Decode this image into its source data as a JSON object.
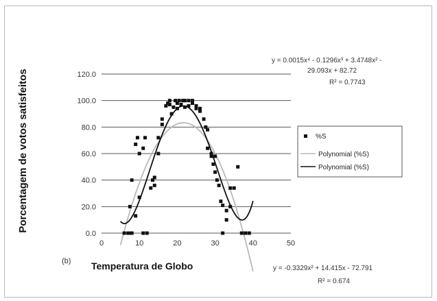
{
  "chart_data": {
    "type": "scatter",
    "ylabel": "Porcentagem de votos satisfeitos",
    "xlabel": "Temperatura de Globo",
    "panel_label": "(b)",
    "xlim": [
      0,
      50
    ],
    "ylim": [
      0,
      120
    ],
    "x_ticks": [
      0,
      10,
      20,
      30,
      40,
      50
    ],
    "x_tick_labels": [
      "0",
      "10",
      "20",
      "30",
      "40",
      "50"
    ],
    "y_ticks": [
      0,
      20,
      40,
      60,
      80,
      100,
      120
    ],
    "y_tick_labels": [
      "0.0",
      "20.0",
      "40.0",
      "60.0",
      "80.0",
      "100.0",
      "120.0"
    ],
    "grid": "horizontal",
    "legend_position": "right",
    "points": {
      "name": "%S",
      "color": "#111111",
      "data": [
        [
          6,
          0
        ],
        [
          7,
          0
        ],
        [
          7.5,
          0
        ],
        [
          8,
          0
        ],
        [
          7.5,
          20
        ],
        [
          8,
          40
        ],
        [
          9,
          67
        ],
        [
          9,
          13
        ],
        [
          9.5,
          72
        ],
        [
          10,
          27
        ],
        [
          10,
          60
        ],
        [
          11,
          64
        ],
        [
          11,
          0
        ],
        [
          11.5,
          72
        ],
        [
          12,
          0
        ],
        [
          13,
          34
        ],
        [
          13.5,
          40
        ],
        [
          14,
          42
        ],
        [
          14,
          36
        ],
        [
          15,
          60
        ],
        [
          15,
          72
        ],
        [
          16,
          86
        ],
        [
          16,
          82
        ],
        [
          17,
          96
        ],
        [
          17.5,
          98
        ],
        [
          18,
          100
        ],
        [
          18,
          97
        ],
        [
          18.5,
          90
        ],
        [
          19,
          95
        ],
        [
          19.5,
          100
        ],
        [
          20,
          98
        ],
        [
          20,
          94
        ],
        [
          20.5,
          100
        ],
        [
          21,
          97
        ],
        [
          21.5,
          100
        ],
        [
          22,
          100
        ],
        [
          22,
          95
        ],
        [
          23,
          100
        ],
        [
          23,
          96
        ],
        [
          24,
          100
        ],
        [
          24,
          98
        ],
        [
          25,
          96
        ],
        [
          25,
          94
        ],
        [
          26,
          94
        ],
        [
          26,
          92
        ],
        [
          27,
          86
        ],
        [
          27.5,
          80
        ],
        [
          28,
          78
        ],
        [
          28,
          64
        ],
        [
          29,
          60
        ],
        [
          29,
          58
        ],
        [
          29.5,
          52
        ],
        [
          30,
          58
        ],
        [
          30,
          46
        ],
        [
          30.5,
          40
        ],
        [
          31,
          36
        ],
        [
          31.5,
          24
        ],
        [
          32,
          21
        ],
        [
          32,
          0
        ],
        [
          33,
          17
        ],
        [
          33,
          10
        ],
        [
          34,
          34
        ],
        [
          34,
          20
        ],
        [
          35,
          34
        ],
        [
          36,
          50
        ],
        [
          37,
          0
        ],
        [
          38,
          0
        ],
        [
          38,
          0
        ],
        [
          39,
          0
        ]
      ]
    },
    "series": [
      {
        "name": "Polynomial (%S)",
        "color": "#b9b9b9",
        "equation": "y = -0.3329x² + 14.415x - 72.791",
        "r2_text": "R² = 0.674",
        "coefficients": [
          -72.791,
          14.415,
          -0.3329
        ]
      },
      {
        "name": "Polynomial (%S)",
        "color": "#111111",
        "equation": "y = 0.0015x⁴ - 0.1296x³ + 3.4748x² - 29.093x + 82.72",
        "r2_text": "R² = 0.7743",
        "coefficients": [
          82.72,
          -29.093,
          3.4748,
          -0.1296,
          0.0015
        ]
      }
    ],
    "fit_x_range": [
      5,
      40
    ],
    "annotations": {
      "eq4_line1": "y = 0.0015x⁴ - 0.1296x³ + 3.4748x² -",
      "eq4_line2": "29.093x + 82.72",
      "eq4_r2": "R² = 0.7743",
      "eq2_line1": "y = -0.3329x² + 14.415x - 72.791",
      "eq2_r2": "R² = 0.674"
    }
  }
}
